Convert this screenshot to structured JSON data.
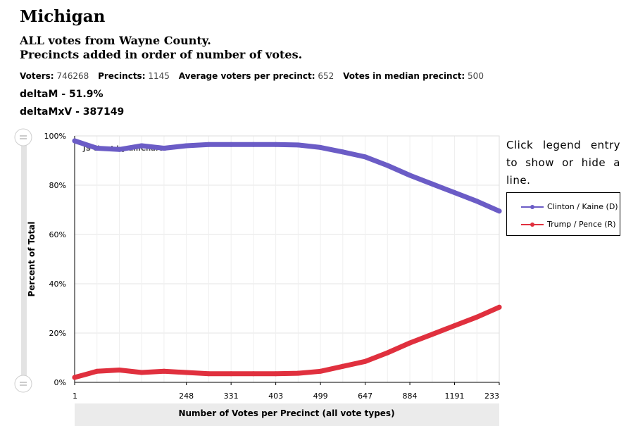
{
  "page": {
    "title": "Michigan",
    "subtitle_line1": "ALL votes from Wayne County.",
    "subtitle_line2": "Precincts added in order of number of votes.",
    "stats": [
      {
        "label": "Voters:",
        "value": "746268"
      },
      {
        "label": "Precincts:",
        "value": "1145"
      },
      {
        "label": "Average voters per precinct:",
        "value": "652"
      },
      {
        "label": "Votes in median precinct:",
        "value": "500"
      }
    ],
    "metric1": "deltaM - 51.9%",
    "metric2": "deltaMxV - 387149",
    "legend_hint": "Click legend entry to show or hide a line.",
    "credit": "JS chart by amCharts"
  },
  "legend": [
    {
      "label": "Clinton / Kaine (D)",
      "color": "#6b5cc6"
    },
    {
      "label": "Trump / Pence (R)",
      "color": "#e0303e"
    }
  ],
  "chart_data": {
    "type": "line",
    "xlabel": "Number of Votes per Precinct (all vote types)",
    "ylabel": "Percent of Total",
    "ylim": [
      0,
      100
    ],
    "yticks": [
      "0%",
      "20%",
      "40%",
      "60%",
      "80%",
      "100%"
    ],
    "xticks": [
      "1",
      "248",
      "331",
      "403",
      "499",
      "647",
      "884",
      "1191",
      "233"
    ],
    "grid": true,
    "legend_position": "right",
    "x": [
      "1",
      "",
      "",
      "",
      "",
      "248",
      "",
      "331",
      "",
      "403",
      "",
      "499",
      "",
      "647",
      "",
      "884",
      "",
      "1191",
      "",
      "233"
    ],
    "series": [
      {
        "name": "Clinton / Kaine (D)",
        "color": "#6b5cc6",
        "values": [
          98,
          95,
          94.5,
          96,
          95,
          96,
          96.5,
          96.5,
          96.5,
          96.5,
          96.3,
          95.3,
          93.5,
          91.5,
          88,
          84,
          80.5,
          77,
          73.5,
          69.5
        ]
      },
      {
        "name": "Trump / Pence (R)",
        "color": "#e0303e",
        "values": [
          2,
          4.5,
          5,
          4,
          4.5,
          4,
          3.5,
          3.5,
          3.5,
          3.5,
          3.7,
          4.5,
          6.5,
          8.5,
          12,
          16,
          19.5,
          23,
          26.5,
          30.5
        ]
      }
    ]
  }
}
